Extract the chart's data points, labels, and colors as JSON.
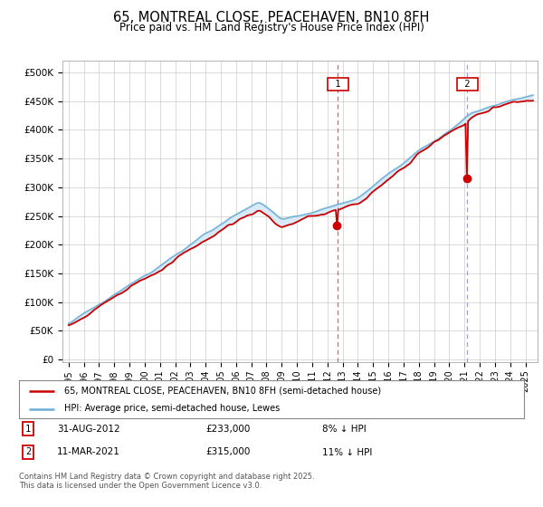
{
  "title": "65, MONTREAL CLOSE, PEACEHAVEN, BN10 8FH",
  "subtitle": "Price paid vs. HM Land Registry's House Price Index (HPI)",
  "title_fontsize": 10.5,
  "subtitle_fontsize": 8.5,
  "ylabel_ticks": [
    "£0",
    "£50K",
    "£100K",
    "£150K",
    "£200K",
    "£250K",
    "£300K",
    "£350K",
    "£400K",
    "£450K",
    "£500K"
  ],
  "ytick_values": [
    0,
    50000,
    100000,
    150000,
    200000,
    250000,
    300000,
    350000,
    400000,
    450000,
    500000
  ],
  "ylim": [
    -5000,
    520000
  ],
  "xlim_start": 1994.6,
  "xlim_end": 2025.8,
  "xtick_years": [
    1995,
    1996,
    1997,
    1998,
    1999,
    2000,
    2001,
    2002,
    2003,
    2004,
    2005,
    2006,
    2007,
    2008,
    2009,
    2010,
    2011,
    2012,
    2013,
    2014,
    2015,
    2016,
    2017,
    2018,
    2019,
    2020,
    2021,
    2022,
    2023,
    2024,
    2025
  ],
  "hpi_color": "#6baed6",
  "price_color": "#cc0000",
  "marker1_x": 2012.67,
  "marker2_x": 2021.18,
  "marker1_price": 233000,
  "marker2_price": 315000,
  "vline1_color": "#e06060",
  "vline2_color": "#a0a0c0",
  "shade_color": "#d8eaf8",
  "legend_line1": "65, MONTREAL CLOSE, PEACEHAVEN, BN10 8FH (semi-detached house)",
  "legend_line2": "HPI: Average price, semi-detached house, Lewes",
  "annot1_label": "1",
  "annot2_label": "2",
  "annot1_date": "31-AUG-2012",
  "annot1_price": "£233,000",
  "annot1_pct": "8% ↓ HPI",
  "annot2_date": "11-MAR-2021",
  "annot2_price": "£315,000",
  "annot2_pct": "11% ↓ HPI",
  "footer": "Contains HM Land Registry data © Crown copyright and database right 2025.\nThis data is licensed under the Open Government Licence v3.0.",
  "bg_color": "#ffffff",
  "plot_bg_color": "#ffffff",
  "grid_color": "#cccccc"
}
